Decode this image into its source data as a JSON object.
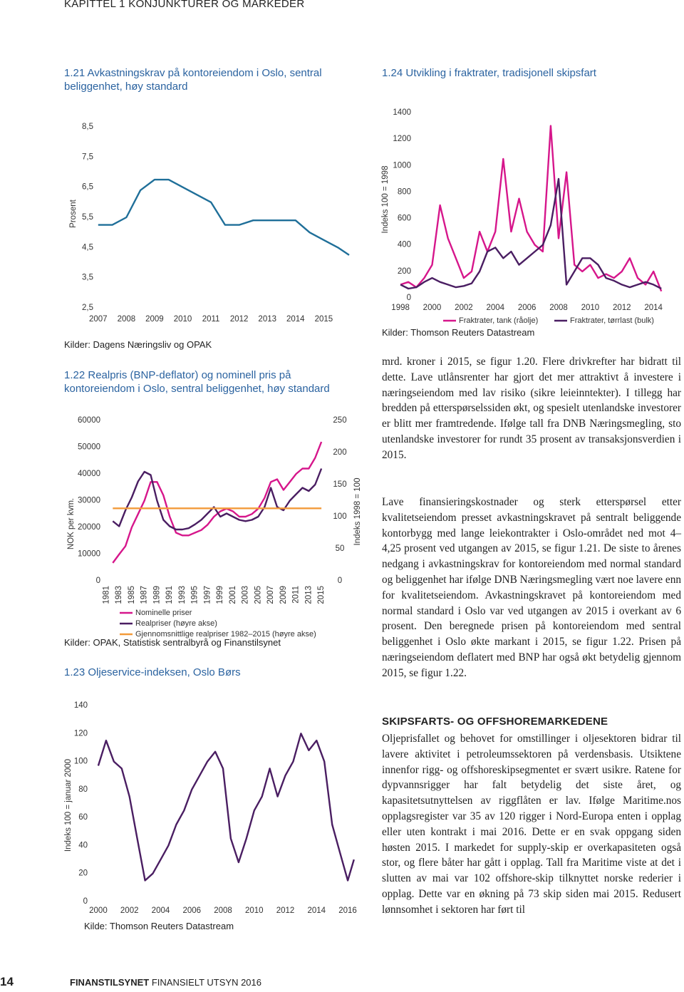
{
  "header": {
    "text": "KAPITTEL 1 KONJUNKTURER OG MARKEDER"
  },
  "chart_data": [
    {
      "type": "line",
      "title": "1.21 Avkastningskrav på kontoreiendom i Oslo, sentral beliggenhet, høy standard",
      "ylabel": "Prosent",
      "source": "Kilder: Dagens Næringsliv og OPAK",
      "color": "#1f6f99",
      "x": [
        2007,
        2007.5,
        2008,
        2008.5,
        2009,
        2009.5,
        2010,
        2011,
        2011.5,
        2012,
        2012.5,
        2014,
        2014.5,
        2015,
        2015.5,
        2015.9
      ],
      "values": [
        5.25,
        5.25,
        5.5,
        6.4,
        6.75,
        6.75,
        6.5,
        6.0,
        5.25,
        5.25,
        5.4,
        5.4,
        5.0,
        4.75,
        4.5,
        4.25
      ],
      "xlim": [
        2006.5,
        2015.9
      ],
      "xticks": [
        2007,
        2008,
        2009,
        2010,
        2011,
        2012,
        2013,
        2014,
        2015
      ],
      "ylim": [
        2.5,
        8.5
      ],
      "yticks": [
        {
          "value": 2.5,
          "label": "2,5"
        },
        {
          "value": 3.5,
          "label": "3,5"
        },
        {
          "value": 4.5,
          "label": "4,5"
        },
        {
          "value": 5.5,
          "label": "5,5"
        },
        {
          "value": 6.5,
          "label": "6,5"
        },
        {
          "value": 7.5,
          "label": "7,5"
        },
        {
          "value": 8.5,
          "label": "8,5"
        }
      ],
      "grid": false
    },
    {
      "type": "line",
      "title": "1.24 Utvikling i fraktrater, tradisjonell skipsfart",
      "ylabel": "Indeks 100 = 1998",
      "source": "Kilder: Thomson Reuters Datastream",
      "x": [
        1998,
        1998.5,
        1999,
        1999.5,
        2000,
        2000.5,
        2001,
        2001.5,
        2002,
        2002.5,
        2003,
        2003.5,
        2004,
        2004.5,
        2005,
        2005.5,
        2006,
        2006.5,
        2007,
        2007.5,
        2008,
        2008.5,
        2009,
        2009.5,
        2010,
        2010.5,
        2011,
        2011.5,
        2012,
        2012.5,
        2013,
        2013.5,
        2014,
        2014.5
      ],
      "series": [
        {
          "name": "Fraktrater, tank (råolje)",
          "color": "#d6168b",
          "values": [
            100,
            120,
            80,
            150,
            250,
            700,
            450,
            300,
            150,
            200,
            500,
            350,
            500,
            1050,
            500,
            750,
            500,
            400,
            350,
            1300,
            450,
            950,
            250,
            200,
            250,
            150,
            180,
            150,
            200,
            300,
            150,
            100,
            200,
            50
          ]
        },
        {
          "name": "Fraktrater, tørrlast (bulk)",
          "color": "#4a1e62",
          "values": [
            100,
            70,
            80,
            120,
            150,
            120,
            100,
            80,
            90,
            110,
            200,
            350,
            380,
            300,
            350,
            250,
            300,
            350,
            400,
            550,
            900,
            100,
            200,
            300,
            300,
            250,
            150,
            130,
            100,
            80,
            100,
            120,
            100,
            70
          ]
        }
      ],
      "xlim": [
        1997.5,
        2015.3
      ],
      "xticks": [
        1998,
        2000,
        2002,
        2004,
        2006,
        2008,
        2010,
        2012,
        2014
      ],
      "ylim": [
        0,
        1400
      ],
      "yticks": [
        0,
        200,
        400,
        600,
        800,
        1000,
        1200,
        1400
      ],
      "grid": false
    },
    {
      "type": "line",
      "title": "1.22 Realpris (BNP-deflator) og nominell pris på kontoreiendom i Oslo, sentral beliggenhet, høy standard",
      "ylabel": "NOK per kvm.",
      "y2label": "Indeks 1998 = 100",
      "source": "Kilder: OPAK, Statistisk sentralbyrå og Finanstilsynet",
      "x": [
        1982,
        1983,
        1984,
        1985,
        1986,
        1987,
        1988,
        1989,
        1990,
        1991,
        1992,
        1993,
        1994,
        1995,
        1996,
        1997,
        1998,
        1999,
        2000,
        2001,
        2002,
        2003,
        2004,
        2005,
        2006,
        2007,
        2008,
        2009,
        2010,
        2011,
        2012,
        2013,
        2014,
        2015
      ],
      "series": [
        {
          "name": "Nominelle priser",
          "color": "#d6168b",
          "values": [
            6700,
            9900,
            13000,
            20000,
            25000,
            30000,
            37000,
            37000,
            32000,
            24000,
            18000,
            17000,
            17000,
            18000,
            19000,
            21000,
            24000,
            26000,
            27000,
            26000,
            24000,
            24000,
            25000,
            27000,
            31000,
            37000,
            38000,
            34000,
            37000,
            40000,
            42000,
            42000,
            46000,
            52000
          ]
        },
        {
          "name": "Realpriser (høyre akse)",
          "color": "#4a1e62",
          "axis": "y2",
          "values": [
            93,
            85,
            110,
            130,
            155,
            170,
            165,
            125,
            95,
            85,
            80,
            80,
            82,
            88,
            95,
            105,
            115,
            100,
            105,
            100,
            95,
            93,
            95,
            100,
            115,
            145,
            115,
            110,
            125,
            135,
            145,
            140,
            150,
            175
          ]
        },
        {
          "name": "Gjennomsnittlige realpriser 1982–2015 (høyre akse)",
          "color": "#f39a3a",
          "axis": "y2",
          "x": [
            1982,
            2015
          ],
          "values": [
            113,
            113
          ]
        }
      ],
      "xlim": [
        1980.5,
        2016
      ],
      "xticks": [
        1981,
        1983,
        1985,
        1987,
        1989,
        1991,
        1993,
        1995,
        1997,
        1999,
        2001,
        2003,
        2005,
        2007,
        2009,
        2011,
        2013,
        2015
      ],
      "ylim": [
        0,
        60000
      ],
      "yticks": [
        0,
        10000,
        20000,
        30000,
        40000,
        50000,
        60000
      ],
      "y2lim": [
        0,
        250
      ],
      "y2ticks": [
        0,
        50,
        100,
        150,
        200,
        250
      ],
      "grid": false
    },
    {
      "type": "line",
      "title": "1.23 Oljeservice-indeksen, Oslo Børs",
      "ylabel": "Indeks 100 = januar 2000",
      "source": "Kilde: Thomson Reuters Datastream",
      "color": "#4a1e62",
      "x": [
        2000,
        2000.5,
        2001,
        2001.5,
        2002,
        2002.5,
        2003,
        2003.5,
        2004,
        2004.5,
        2005,
        2005.5,
        2006,
        2006.5,
        2007,
        2007.5,
        2008,
        2008.5,
        2009,
        2009.5,
        2010,
        2010.5,
        2011,
        2011.5,
        2012,
        2012.5,
        2013,
        2013.5,
        2014,
        2014.5,
        2015,
        2015.5,
        2016,
        2016.4
      ],
      "values": [
        97,
        115,
        100,
        95,
        75,
        45,
        15,
        20,
        30,
        40,
        55,
        65,
        80,
        90,
        100,
        107,
        95,
        45,
        28,
        45,
        65,
        75,
        95,
        75,
        90,
        100,
        120,
        108,
        115,
        100,
        55,
        35,
        15,
        30
      ],
      "xlim": [
        1999.5,
        2016.5
      ],
      "xticks": [
        2000,
        2002,
        2004,
        2006,
        2008,
        2010,
        2012,
        2014,
        2016
      ],
      "ylim": [
        0,
        140
      ],
      "yticks": [
        0,
        20,
        40,
        60,
        80,
        100,
        120,
        140
      ],
      "grid": false
    }
  ],
  "body": {
    "paragraphs": [
      "mrd. kroner i 2015, se figur 1.20. Flere drivkrefter har bidratt til dette. Lave utlånsrenter har gjort det mer attraktivt å investere i næringseiendom med lav risiko (sikre leieinntekter). I tillegg har bredden på etterspørselssiden økt, og spesielt utenlandske investorer er blitt mer framtredende. Ifølge tall fra DNB Næringsmegling, sto utenlandske investorer for rundt 35 prosent av transaksjonsverdien i 2015.",
      "Lave finansieringskostnader og sterk etterspørsel etter kvalitetseiendom presset avkastningskravet på sentralt beliggende kontorbygg med lange leiekontrakter i Oslo-området ned mot 4–4,25 prosent ved utgangen av 2015, se figur 1.21. De siste to årenes nedgang i avkastningskrav for kontoreiendom med normal standard og beliggenhet har ifølge DNB Næringsmegling vært noe lavere enn for kvalitetseiendom. Avkastningskravet på kontoreiendom med normal standard i Oslo var ved utgangen av 2015 i overkant av 6 prosent. Den beregnede prisen på kontoreiendom med sentral beliggenhet i Oslo økte markant i 2015, se figur 1.22. Prisen på næringseiendom deflatert med BNP har også økt betydelig gjennom 2015, se figur 1.22."
    ],
    "heading": "SKIPSFARTS- OG OFFSHOREMARKEDENE",
    "paragraph_after": "Oljeprisfallet og behovet for omstillinger i oljesektoren bidrar til lavere aktivitet i petroleumssektoren på verdensbasis. Utsiktene innenfor rigg- og offshoreskipsegmentet er svært usikre. Ratene for dypvannsrigger har falt betydelig det siste året, og kapasitetsutnyttelsen av riggflåten er lav. Ifølge Maritime.nos opplagsregister var 35 av 120 rigger i Nord-Europa enten i opplag eller uten kontrakt i mai 2016. Dette er en svak oppgang siden høsten 2015. I markedet for supply-skip er overkapasiteten også stor, og flere båter har gått i opplag. Tall fra Maritime viste at det i slutten av mai var 102 offshore-skip tilknyttet norske rederier i opplag. Dette var en økning på 73 skip siden mai 2015. Redusert lønnsomhet i sektoren har ført til"
  },
  "footer": {
    "page": "14",
    "publisher": "FINANSTILSYNET",
    "title": "FINANSIELT UTSYN 2016"
  }
}
